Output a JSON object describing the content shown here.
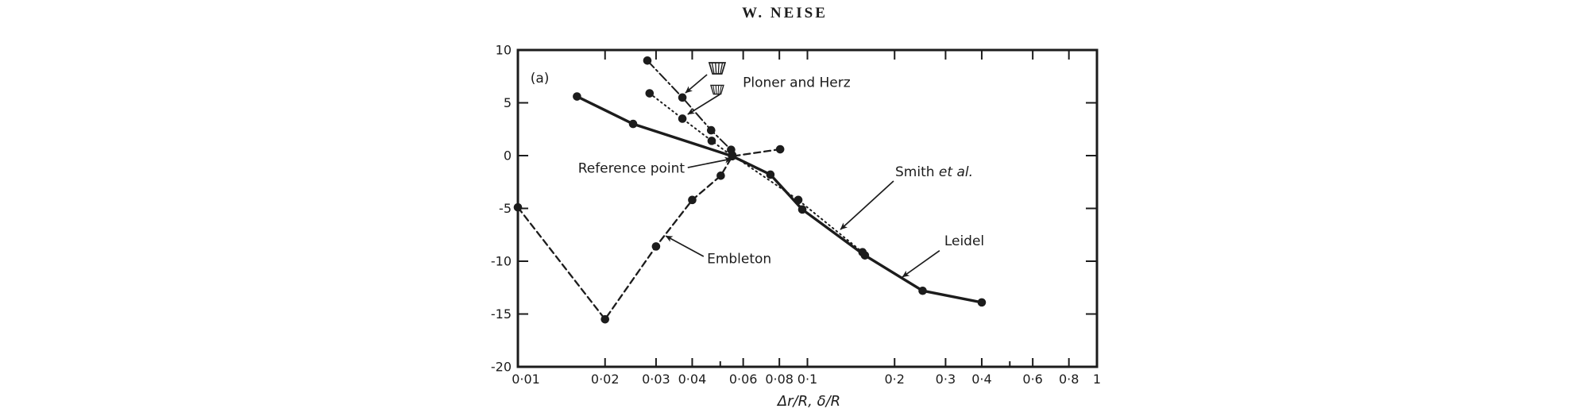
{
  "page": {
    "title": "W. NEISE",
    "background": "#ffffff",
    "ink": "#1c1c1c"
  },
  "chart_data": {
    "type": "line",
    "panel_label": "(a)",
    "title": "",
    "xlabel": "Δr/R, δ/R",
    "ylabel": "",
    "x_scale": "log",
    "xlim": [
      0.01,
      1
    ],
    "ylim": [
      -20,
      10
    ],
    "grid": false,
    "legend_position": "none",
    "x_ticks": [
      {
        "v": 0.01,
        "label": "0·01"
      },
      {
        "v": 0.02,
        "label": "0·02"
      },
      {
        "v": 0.03,
        "label": "0·03"
      },
      {
        "v": 0.04,
        "label": "0·04"
      },
      {
        "v": 0.06,
        "label": "0·06"
      },
      {
        "v": 0.08,
        "label": "0·08"
      },
      {
        "v": 0.1,
        "label": "0·1"
      },
      {
        "v": 0.2,
        "label": "0·2"
      },
      {
        "v": 0.3,
        "label": "0·3"
      },
      {
        "v": 0.4,
        "label": "0·4"
      },
      {
        "v": 0.6,
        "label": "0·6"
      },
      {
        "v": 0.8,
        "label": "0·8"
      },
      {
        "v": 1,
        "label": "1"
      }
    ],
    "x_minor_ticks": [
      0.05,
      0.5
    ],
    "top_ticks": [
      0.02,
      0.03,
      0.04,
      0.06,
      0.08,
      0.1,
      0.2,
      0.3,
      0.4,
      0.6,
      0.8
    ],
    "y_ticks": [
      {
        "v": 10,
        "label": "10"
      },
      {
        "v": 5,
        "label": "5"
      },
      {
        "v": 0,
        "label": "0"
      },
      {
        "v": -5,
        "label": "-5"
      },
      {
        "v": -10,
        "label": "-10"
      },
      {
        "v": -15,
        "label": "-15"
      },
      {
        "v": -20,
        "label": "-20"
      }
    ],
    "right_ticks": [
      5,
      0,
      -5,
      -10,
      -15
    ],
    "series": [
      {
        "name": "Leidel",
        "line": "solid",
        "width": 3.4,
        "marker": "circle",
        "points": [
          [
            0.016,
            5.6
          ],
          [
            0.025,
            3.0
          ],
          [
            0.055,
            -0.05
          ],
          [
            0.0745,
            -1.8
          ],
          [
            0.096,
            -5.1
          ],
          [
            0.158,
            -9.45
          ],
          [
            0.25,
            -12.8
          ],
          [
            0.4,
            -13.9
          ]
        ]
      },
      {
        "name": "Smith et al.",
        "line": "dotted",
        "width": 2.0,
        "marker": "circle",
        "points": [
          [
            0.055,
            0.05
          ],
          [
            0.093,
            -4.2
          ],
          [
            0.155,
            -9.15
          ]
        ]
      },
      {
        "name": "Ploner and Herz (upper cut-off)",
        "line": "dashdot",
        "width": 2.0,
        "marker": "circle",
        "points": [
          [
            0.028,
            9.0
          ],
          [
            0.037,
            5.5
          ],
          [
            0.0465,
            2.4
          ],
          [
            0.0545,
            0.55
          ]
        ]
      },
      {
        "name": "Ploner and Herz (lower cut-off)",
        "line": "dotted",
        "width": 2.0,
        "marker": "circle",
        "points": [
          [
            0.0285,
            5.9
          ],
          [
            0.037,
            3.5
          ],
          [
            0.0467,
            1.4
          ],
          [
            0.055,
            -0.05
          ]
        ]
      },
      {
        "name": "Embleton",
        "line": "dashed",
        "width": 2.3,
        "marker": "circle",
        "points": [
          [
            0.01,
            -4.9
          ],
          [
            0.02,
            -15.5
          ],
          [
            0.03,
            -8.6
          ],
          [
            0.04,
            -4.2
          ],
          [
            0.0502,
            -1.9
          ],
          [
            0.055,
            -0.05
          ],
          [
            0.0805,
            0.6
          ]
        ]
      }
    ],
    "reference_point": {
      "x": 0.055,
      "y": 0
    },
    "annotations": {
      "labels": [
        {
          "id": "panel-label",
          "x": 0.0119,
          "y": 6.9,
          "anchor": "middle",
          "parts": [
            {
              "t": "(a)"
            }
          ]
        },
        {
          "id": "ploner-herz-label",
          "x": 0.0598,
          "y": 6.5,
          "anchor": "start",
          "parts": [
            {
              "t": "Ploner and Herz"
            }
          ]
        },
        {
          "id": "reference-point-label",
          "x": 0.0377,
          "y": -1.6,
          "anchor": "end",
          "parts": [
            {
              "t": "Reference point"
            }
          ]
        },
        {
          "id": "smith-label",
          "x": 0.201,
          "y": -1.95,
          "anchor": "start",
          "parts": [
            {
              "t": "Smith "
            },
            {
              "t": "et al.",
              "i": true
            }
          ]
        },
        {
          "id": "leidel-label",
          "x": 0.297,
          "y": -8.5,
          "anchor": "start",
          "parts": [
            {
              "t": "Leidel"
            }
          ]
        },
        {
          "id": "embleton-label",
          "x": 0.045,
          "y": -10.2,
          "anchor": "start",
          "parts": [
            {
              "t": "Embleton"
            }
          ]
        }
      ],
      "arrows": [
        {
          "id": "ploner-arrow-1",
          "x1": 0.045,
          "y1": 7.67,
          "x2": 0.0379,
          "y2": 5.94
        },
        {
          "id": "ploner-arrow-2",
          "x1": 0.0498,
          "y1": 5.79,
          "x2": 0.0386,
          "y2": 3.91
        },
        {
          "id": "reference-arrow",
          "x1": 0.0386,
          "y1": -1.13,
          "x2": 0.0547,
          "y2": -0.3
        },
        {
          "id": "smith-arrow",
          "x1": 0.1984,
          "y1": -2.41,
          "x2": 0.13,
          "y2": -7.0
        },
        {
          "id": "leidel-arrow",
          "x1": 0.286,
          "y1": -9.0,
          "x2": 0.2128,
          "y2": -11.5
        },
        {
          "id": "embleton-arrow",
          "x1": 0.0438,
          "y1": -9.55,
          "x2": 0.0324,
          "y2": -7.6
        }
      ],
      "symbols": [
        {
          "id": "cutoff-symbol-1",
          "x": 0.0488,
          "y": 8.27,
          "scale": 1.0
        },
        {
          "id": "cutoff-symbol-2",
          "x": 0.0488,
          "y": 6.24,
          "scale": 0.8
        }
      ]
    }
  }
}
